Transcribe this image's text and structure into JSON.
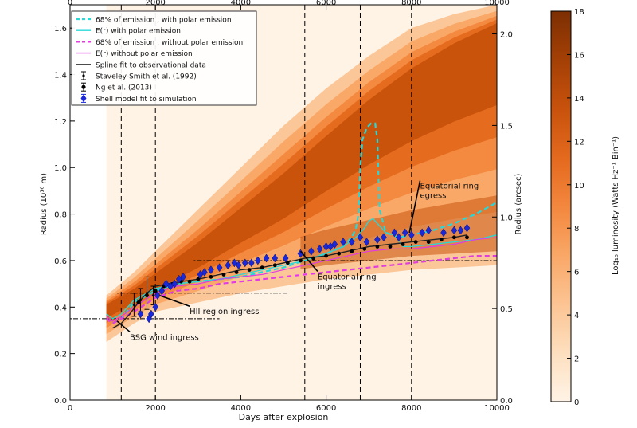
{
  "chart_data": {
    "type": "heatmap",
    "xlabel": "Days after explosion",
    "ylabel": "Radius (10¹⁶ m)",
    "ylabel_right": "Radius (arcsec)",
    "colorbar_label": "Log₁₀ luminosity (Watts Hz⁻¹ Bin⁻¹)",
    "xlim": [
      0,
      10000
    ],
    "ylim": [
      0,
      1.7
    ],
    "xticks": [
      0,
      2000,
      4000,
      6000,
      8000,
      10000
    ],
    "xtick_labels": [
      "0",
      "2000",
      "4000",
      "6000",
      "8000",
      "10000"
    ],
    "yticks": [
      0,
      0.2,
      0.4,
      0.6,
      0.8,
      1.0,
      1.2,
      1.4,
      1.6
    ],
    "ytick_labels": [
      "0.0",
      "0.2",
      "0.4",
      "0.6",
      "0.8",
      "1.0",
      "1.2",
      "1.4",
      "1.6"
    ],
    "right_ticks": [
      {
        "value": 0.0,
        "label": "0.0"
      },
      {
        "value": 0.5,
        "label": "0.5"
      },
      {
        "value": 1.0,
        "label": "1.0"
      },
      {
        "value": 1.5,
        "label": "1.5"
      },
      {
        "value": 2.0,
        "label": "2.0"
      }
    ],
    "arcsec_per_unit": 1.27,
    "colorbar": {
      "range": [
        0,
        18
      ],
      "ticks": [
        0,
        2,
        4,
        6,
        8,
        10,
        12,
        14,
        16,
        18
      ],
      "tick_labels": [
        "0",
        "2",
        "4",
        "6",
        "8",
        "10",
        "12",
        "14",
        "16",
        "18"
      ],
      "colors": [
        "#fff3e6",
        "#fde0c0",
        "#fcc493",
        "#f9a665",
        "#f3873e",
        "#e46a1e",
        "#c8520c",
        "#a23f05",
        "#7d2f03"
      ]
    },
    "vertical_lines_days": [
      1200,
      2000,
      5500,
      6800,
      8000
    ],
    "horizontal_lines": [
      {
        "y": 0.35,
        "x_range": [
          0,
          3500
        ]
      },
      {
        "y": 0.46,
        "x_range": [
          1100,
          5100
        ]
      },
      {
        "y": 0.6,
        "x_range": [
          2900,
          10000
        ]
      }
    ],
    "legend": [
      {
        "label": "68% of emission , with polar emission",
        "color": "#28d8d8",
        "style": "dashed"
      },
      {
        "label": "E(r) with polar emission",
        "color": "#28d8d8",
        "style": "solid"
      },
      {
        "label": "68% of emission , without polar emission",
        "color": "#e03ce0",
        "style": "dashed"
      },
      {
        "label": "E(r) without polar emission",
        "color": "#e03ce0",
        "style": "solid"
      },
      {
        "label": "Spline fit to observational data",
        "color": "#333333",
        "style": "solid"
      },
      {
        "label": "Staveley-Smith et al. (1992)",
        "color": "#000000",
        "style": "errorbar-dot"
      },
      {
        "label": "Ng et al. (2013)",
        "color": "#000000",
        "style": "errorbar-hex"
      },
      {
        "label": "Shell model fit to simulation",
        "color": "#1a28d8",
        "style": "errorbar-diamond"
      }
    ],
    "annotations": [
      {
        "text": "BSG wind ingress",
        "x": 1400,
        "y": 0.28,
        "arrow_to": [
          1100,
          0.34
        ]
      },
      {
        "text": "HII region ingress",
        "x": 2800,
        "y": 0.39,
        "arrow_to": [
          2100,
          0.45
        ]
      },
      {
        "text": "Equatorial ring",
        "text2": "ingress",
        "x": 5800,
        "y": 0.54,
        "arrow_to": [
          5400,
          0.64
        ]
      },
      {
        "text": "Equatorial ring",
        "text2": "egress",
        "x": 8200,
        "y": 0.93,
        "arrow_to": [
          7950,
          0.72
        ]
      }
    ],
    "series": [
      {
        "name": "68% of emission , with polar emission",
        "x": [
          850,
          1000,
          1200,
          1500,
          2000,
          2500,
          3000,
          3500,
          4000,
          4500,
          5000,
          5500,
          6000,
          6400,
          6600,
          6700,
          6760,
          6800,
          6850,
          6950,
          7050,
          7150,
          7200,
          7250,
          7400,
          7700,
          8000,
          8500,
          9000,
          9500,
          10000
        ],
        "y": [
          0.35,
          0.33,
          0.35,
          0.42,
          0.47,
          0.5,
          0.51,
          0.52,
          0.53,
          0.55,
          0.57,
          0.6,
          0.63,
          0.66,
          0.7,
          0.74,
          0.8,
          1.0,
          1.12,
          1.17,
          1.19,
          1.19,
          1.12,
          0.82,
          0.72,
          0.7,
          0.71,
          0.73,
          0.76,
          0.8,
          0.85
        ]
      },
      {
        "name": "E(r) with polar emission",
        "x": [
          850,
          1000,
          1200,
          1500,
          2000,
          2500,
          3000,
          3500,
          4000,
          4500,
          5000,
          5500,
          6000,
          6400,
          6700,
          6900,
          7000,
          7100,
          7200,
          7400,
          7600,
          7800,
          8000,
          8500,
          9000,
          9500,
          10000
        ],
        "y": [
          0.37,
          0.35,
          0.37,
          0.43,
          0.48,
          0.5,
          0.51,
          0.52,
          0.54,
          0.56,
          0.58,
          0.6,
          0.63,
          0.66,
          0.7,
          0.74,
          0.77,
          0.78,
          0.76,
          0.72,
          0.71,
          0.66,
          0.66,
          0.67,
          0.68,
          0.69,
          0.71
        ]
      },
      {
        "name": "68% of emission , without polar emission",
        "x": [
          850,
          1000,
          1200,
          1500,
          2000,
          2500,
          3000,
          3500,
          4000,
          4500,
          5000,
          5500,
          6000,
          6500,
          7000,
          7500,
          8000,
          8500,
          9000,
          9500,
          10000
        ],
        "y": [
          0.35,
          0.33,
          0.35,
          0.38,
          0.44,
          0.47,
          0.48,
          0.5,
          0.51,
          0.52,
          0.53,
          0.54,
          0.55,
          0.56,
          0.57,
          0.58,
          0.59,
          0.6,
          0.61,
          0.62,
          0.62
        ]
      },
      {
        "name": "E(r) without polar emission",
        "x": [
          850,
          1000,
          1200,
          1500,
          2000,
          2500,
          3000,
          3500,
          4000,
          4500,
          5000,
          5500,
          6000,
          6500,
          7000,
          7500,
          8000,
          8500,
          9000,
          9500,
          10000
        ],
        "y": [
          0.36,
          0.34,
          0.36,
          0.4,
          0.46,
          0.49,
          0.5,
          0.52,
          0.53,
          0.54,
          0.56,
          0.58,
          0.6,
          0.62,
          0.64,
          0.65,
          0.65,
          0.66,
          0.67,
          0.69,
          0.7
        ]
      },
      {
        "name": "Spline fit to observational data",
        "x": [
          1000,
          1200,
          1400,
          1600,
          1800,
          2000,
          2300,
          2600,
          3000,
          3500,
          4000,
          4500,
          5000,
          5500,
          6000,
          6500,
          7000,
          7500,
          8000,
          8500,
          9000,
          9300
        ],
        "y": [
          0.31,
          0.33,
          0.37,
          0.42,
          0.46,
          0.49,
          0.5,
          0.51,
          0.52,
          0.54,
          0.56,
          0.57,
          0.59,
          0.61,
          0.62,
          0.64,
          0.66,
          0.67,
          0.68,
          0.69,
          0.7,
          0.71
        ]
      }
    ],
    "staveley_smith_1992": [
      {
        "x": 1500,
        "y": 0.41,
        "err": 0.05
      },
      {
        "x": 1650,
        "y": 0.43,
        "err": 0.05
      },
      {
        "x": 1800,
        "y": 0.46,
        "err": 0.07
      },
      {
        "x": 1950,
        "y": 0.45,
        "err": 0.04
      }
    ],
    "ng_2013": {
      "x": [
        1600,
        1800,
        2000,
        2200,
        2400,
        2600,
        2800,
        3000,
        3300,
        3600,
        3900,
        4200,
        4500,
        4800,
        5100,
        5400,
        5700,
        6000,
        6300,
        6600,
        6900,
        7200,
        7500,
        7800,
        8100,
        8400,
        8700,
        9000,
        9300
      ],
      "y": [
        0.42,
        0.45,
        0.47,
        0.49,
        0.5,
        0.51,
        0.51,
        0.52,
        0.53,
        0.54,
        0.55,
        0.56,
        0.57,
        0.58,
        0.59,
        0.6,
        0.61,
        0.62,
        0.63,
        0.64,
        0.65,
        0.66,
        0.66,
        0.67,
        0.68,
        0.68,
        0.69,
        0.7,
        0.7
      ]
    },
    "shell_model": {
      "x": [
        1650,
        1850,
        1900,
        2000,
        2050,
        2150,
        2250,
        2350,
        2450,
        2550,
        2650,
        3050,
        3150,
        3300,
        3500,
        3700,
        3850,
        3950,
        4100,
        4250,
        4400,
        4600,
        4800,
        5050,
        5400,
        5650,
        5850,
        6000,
        6100,
        6200,
        6400,
        6600,
        6800,
        6950,
        7200,
        7350,
        7600,
        7700,
        7850,
        8000,
        8250,
        8400,
        8750,
        9000,
        9150,
        9300
      ],
      "y": [
        0.37,
        0.35,
        0.37,
        0.4,
        0.45,
        0.47,
        0.5,
        0.49,
        0.5,
        0.52,
        0.53,
        0.54,
        0.55,
        0.56,
        0.57,
        0.58,
        0.59,
        0.58,
        0.59,
        0.59,
        0.6,
        0.61,
        0.61,
        0.61,
        0.63,
        0.64,
        0.65,
        0.66,
        0.66,
        0.67,
        0.68,
        0.68,
        0.7,
        0.68,
        0.69,
        0.7,
        0.72,
        0.7,
        0.72,
        0.71,
        0.72,
        0.73,
        0.72,
        0.73,
        0.73,
        0.74
      ],
      "err": 0.015
    },
    "emission_band": {
      "x": [
        850,
        1500,
        2000,
        3000,
        4000,
        5000,
        6000,
        7000,
        8000,
        9000,
        10000
      ],
      "lower": [
        0.25,
        0.33,
        0.38,
        0.42,
        0.46,
        0.49,
        0.52,
        0.54,
        0.56,
        0.57,
        0.58
      ],
      "upper": [
        0.45,
        0.55,
        0.64,
        0.82,
        1.0,
        1.18,
        1.34,
        1.48,
        1.6,
        1.66,
        1.7
      ],
      "bright_ridge": [
        0.4,
        0.46,
        0.52,
        0.64,
        0.78,
        0.92,
        1.08,
        1.24,
        1.38,
        1.5,
        1.6
      ]
    }
  }
}
